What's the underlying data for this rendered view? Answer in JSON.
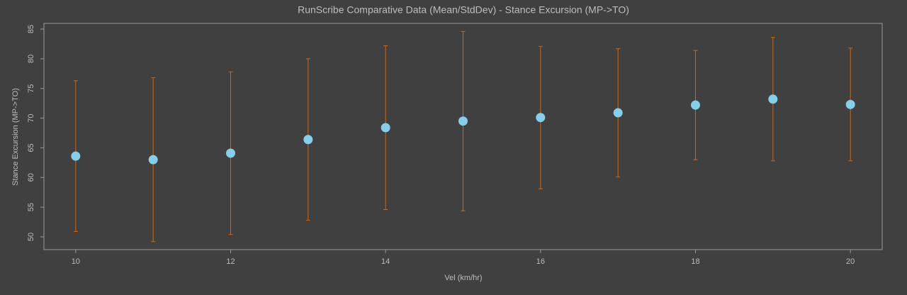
{
  "chart_data": {
    "type": "scatter",
    "title": "RunScribe Comparative Data (Mean/StdDev) - Stance Excursion (MP->TO)",
    "x_label": "Vel (km/hr)",
    "y_label": "Stance Excursion (MP->TO)",
    "x": [
      10,
      11,
      12,
      13,
      14,
      15,
      16,
      17,
      18,
      19,
      20
    ],
    "values": [
      63.6,
      63.0,
      64.1,
      66.4,
      68.4,
      69.5,
      70.1,
      70.9,
      72.2,
      73.2,
      72.3
    ],
    "errors": [
      12.7,
      13.8,
      13.7,
      13.6,
      13.8,
      15.1,
      12.0,
      10.8,
      9.2,
      10.4,
      9.5
    ],
    "color": "#87ceeb",
    "error_color": "#c8691c",
    "xlim": [
      9.59,
      20.41
    ],
    "ylim": [
      47.85,
      85.96
    ],
    "xticks": [
      10,
      12,
      14,
      16,
      18,
      20
    ],
    "yticks": [
      50,
      55,
      60,
      65,
      70,
      75,
      80,
      85
    ],
    "grid": false
  }
}
